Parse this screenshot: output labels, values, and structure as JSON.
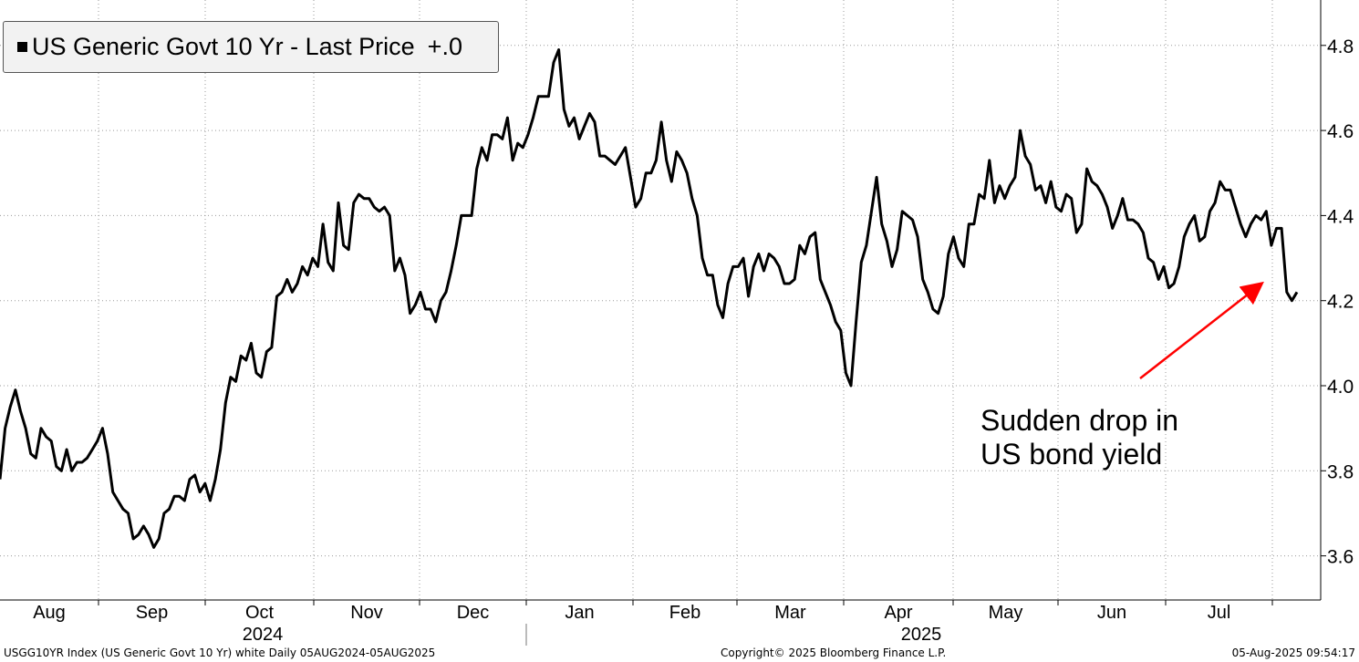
{
  "chart_data": {
    "type": "line",
    "legend": {
      "label": "US Generic Govt 10 Yr - Last Price",
      "change": "+.0"
    },
    "annotation": {
      "text": "Sudden drop in\nUS bond yield"
    },
    "colors": {
      "line": "#000000",
      "arrow": "#ff0000",
      "grid": "#9a9a9a",
      "legend_bg": "#f2f2f2"
    },
    "ylim": [
      3.5,
      4.85
    ],
    "y_ticks": [
      "4.8",
      "4.6",
      "4.4",
      "4.2",
      "4.0",
      "3.8",
      "3.6"
    ],
    "y_tick_values": [
      4.8,
      4.6,
      4.4,
      4.2,
      4.0,
      3.8,
      3.6
    ],
    "month_labels": [
      "Aug",
      "Sep",
      "Oct",
      "Nov",
      "Dec",
      "Jan",
      "Feb",
      "Mar",
      "Apr",
      "May",
      "Jun",
      "Jul"
    ],
    "year_labels": [
      "2024",
      "2025"
    ],
    "grid": true,
    "y_axis_position": "right",
    "series": [
      {
        "values": [
          3.78,
          3.9,
          3.95,
          3.99,
          3.94,
          3.9,
          3.84,
          3.83,
          3.9,
          3.88,
          3.87,
          3.81,
          3.8,
          3.85,
          3.8,
          3.82,
          3.82,
          3.83,
          3.85,
          3.87,
          3.9,
          3.84,
          3.75,
          3.73,
          3.71,
          3.7,
          3.64,
          3.65,
          3.67,
          3.65,
          3.62,
          3.64,
          3.7,
          3.71,
          3.74,
          3.74,
          3.73,
          3.78,
          3.79,
          3.75,
          3.77,
          3.73,
          3.78,
          3.85,
          3.96,
          4.02,
          4.01,
          4.07,
          4.06,
          4.1,
          4.03,
          4.02,
          4.08,
          4.09,
          4.21,
          4.22,
          4.25,
          4.22,
          4.24,
          4.28,
          4.26,
          4.3,
          4.28,
          4.38,
          4.29,
          4.27,
          4.43,
          4.33,
          4.32,
          4.43,
          4.45,
          4.44,
          4.44,
          4.42,
          4.41,
          4.42,
          4.4,
          4.27,
          4.3,
          4.26,
          4.17,
          4.19,
          4.22,
          4.18,
          4.18,
          4.15,
          4.2,
          4.22,
          4.27,
          4.33,
          4.4,
          4.4,
          4.4,
          4.51,
          4.56,
          4.53,
          4.59,
          4.59,
          4.58,
          4.63,
          4.53,
          4.57,
          4.56,
          4.59,
          4.63,
          4.68,
          4.68,
          4.68,
          4.76,
          4.79,
          4.65,
          4.61,
          4.63,
          4.58,
          4.61,
          4.64,
          4.62,
          4.54,
          4.54,
          4.53,
          4.52,
          4.54,
          4.56,
          4.49,
          4.42,
          4.44,
          4.5,
          4.5,
          4.53,
          4.62,
          4.53,
          4.48,
          4.55,
          4.53,
          4.5,
          4.44,
          4.4,
          4.3,
          4.26,
          4.26,
          4.19,
          4.16,
          4.24,
          4.28,
          4.28,
          4.3,
          4.21,
          4.28,
          4.31,
          4.27,
          4.31,
          4.3,
          4.28,
          4.24,
          4.24,
          4.25,
          4.33,
          4.31,
          4.35,
          4.36,
          4.25,
          4.22,
          4.19,
          4.15,
          4.13,
          4.03,
          4.0,
          4.15,
          4.29,
          4.33,
          4.41,
          4.49,
          4.38,
          4.34,
          4.28,
          4.32,
          4.41,
          4.4,
          4.39,
          4.35,
          4.25,
          4.22,
          4.18,
          4.17,
          4.21,
          4.31,
          4.35,
          4.3,
          4.28,
          4.38,
          4.38,
          4.45,
          4.44,
          4.53,
          4.43,
          4.47,
          4.44,
          4.47,
          4.49,
          4.6,
          4.54,
          4.52,
          4.46,
          4.47,
          4.43,
          4.48,
          4.42,
          4.41,
          4.45,
          4.44,
          4.36,
          4.38,
          4.51,
          4.48,
          4.47,
          4.45,
          4.42,
          4.37,
          4.4,
          4.44,
          4.39,
          4.39,
          4.38,
          4.36,
          4.3,
          4.29,
          4.25,
          4.28,
          4.23,
          4.24,
          4.28,
          4.35,
          4.38,
          4.4,
          4.34,
          4.35,
          4.41,
          4.43,
          4.48,
          4.46,
          4.46,
          4.42,
          4.38,
          4.35,
          4.38,
          4.4,
          4.39,
          4.41,
          4.33,
          4.37,
          4.37,
          4.22,
          4.2,
          4.22
        ]
      }
    ]
  },
  "footer": {
    "left": "USGG10YR Index (US Generic Govt 10 Yr) white  Daily 05AUG2024-05AUG2025",
    "center": "Copyright© 2025 Bloomberg Finance L.P.",
    "right": "05-Aug-2025 09:54:17"
  }
}
